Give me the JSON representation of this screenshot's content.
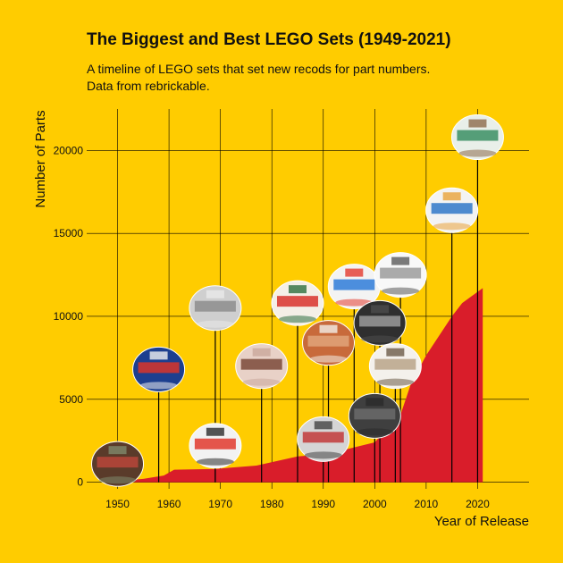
{
  "header": {
    "title": "The Biggest and Best LEGO Sets (1949-2021)",
    "subtitle_lines": [
      "A timeline of LEGO sets that set new recods for part numbers.",
      "Data from rebrickable."
    ]
  },
  "chart_data": {
    "type": "area",
    "title": "The Biggest and Best LEGO Sets (1949-2021)",
    "xlabel": "Year of Release",
    "ylabel": "Number of Parts",
    "xlim": [
      1944,
      2030
    ],
    "ylim": [
      -400,
      22500
    ],
    "xticks": [
      1950,
      1960,
      1970,
      1980,
      1990,
      2000,
      2010,
      2020
    ],
    "yticks": [
      0,
      5000,
      10000,
      15000,
      20000
    ],
    "grid": true,
    "x": [
      1949,
      1951,
      1955,
      1957,
      1959,
      1961,
      1969,
      1977,
      1985,
      1991,
      1996,
      2000,
      2002,
      2005,
      2007,
      2010,
      2015,
      2017,
      2021
    ],
    "y": [
      50,
      100,
      200,
      300,
      400,
      750,
      800,
      1000,
      1550,
      1700,
      2100,
      2400,
      3100,
      4050,
      5900,
      7650,
      10000,
      10800,
      11700
    ],
    "markers": [
      {
        "year": 1950,
        "parts": 1100
      },
      {
        "year": 1958,
        "parts": 6800
      },
      {
        "year": 1969,
        "parts": 2200
      },
      {
        "year": 1969,
        "parts": 10500
      },
      {
        "year": 1978,
        "parts": 7000
      },
      {
        "year": 1985,
        "parts": 10800
      },
      {
        "year": 1990,
        "parts": 2600
      },
      {
        "year": 1991,
        "parts": 8400
      },
      {
        "year": 1996,
        "parts": 11800
      },
      {
        "year": 2000,
        "parts": 4000
      },
      {
        "year": 2001,
        "parts": 9600
      },
      {
        "year": 2004,
        "parts": 7000
      },
      {
        "year": 2005,
        "parts": 12500
      },
      {
        "year": 2015,
        "parts": 16400
      },
      {
        "year": 2020,
        "parts": 20800
      }
    ],
    "colors": {
      "background": "#FFCC00",
      "area": "#D91D2A",
      "grid": "#000000"
    }
  }
}
